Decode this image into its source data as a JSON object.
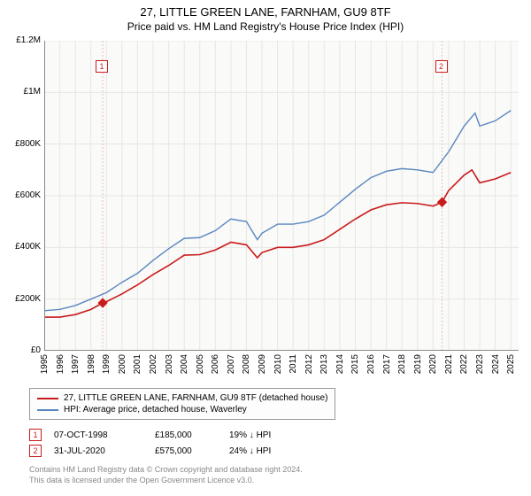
{
  "title": "27, LITTLE GREEN LANE, FARNHAM, GU9 8TF",
  "subtitle": "Price paid vs. HM Land Registry's House Price Index (HPI)",
  "chart": {
    "type": "line",
    "background_color": "#ffffff",
    "plot_bg_color": "#fafaf9",
    "grid_color": "#e6e6e3",
    "axis_color": "#888888",
    "xlim": [
      1995,
      2025.5
    ],
    "ylim": [
      0,
      1200000
    ],
    "ytick_step": 200000,
    "y_ticks": [
      "£0",
      "£200K",
      "£400K",
      "£600K",
      "£800K",
      "£1M",
      "£1.2M"
    ],
    "x_ticks": [
      "1995",
      "1996",
      "1997",
      "1998",
      "1999",
      "2000",
      "2001",
      "2002",
      "2003",
      "2004",
      "2005",
      "2006",
      "2007",
      "2008",
      "2009",
      "2010",
      "2011",
      "2012",
      "2013",
      "2014",
      "2015",
      "2016",
      "2017",
      "2018",
      "2019",
      "2020",
      "2021",
      "2022",
      "2023",
      "2024",
      "2025"
    ],
    "series_red": {
      "label": "27, LITTLE GREEN LANE, FARNHAM, GU9 8TF (detached house)",
      "color": "#c81b1b",
      "line_width": 1.6,
      "data": [
        [
          1995,
          130000
        ],
        [
          1996,
          130000
        ],
        [
          1997,
          140000
        ],
        [
          1998,
          160000
        ],
        [
          1998.76,
          185000
        ],
        [
          1999,
          190000
        ],
        [
          2000,
          220000
        ],
        [
          2001,
          255000
        ],
        [
          2002,
          295000
        ],
        [
          2003,
          330000
        ],
        [
          2004,
          370000
        ],
        [
          2005,
          372000
        ],
        [
          2006,
          390000
        ],
        [
          2007,
          420000
        ],
        [
          2008,
          410000
        ],
        [
          2008.7,
          360000
        ],
        [
          2009,
          380000
        ],
        [
          2010,
          400000
        ],
        [
          2011,
          400000
        ],
        [
          2012,
          410000
        ],
        [
          2013,
          430000
        ],
        [
          2014,
          470000
        ],
        [
          2015,
          510000
        ],
        [
          2016,
          545000
        ],
        [
          2017,
          565000
        ],
        [
          2018,
          573000
        ],
        [
          2019,
          570000
        ],
        [
          2020,
          560000
        ],
        [
          2020.58,
          575000
        ],
        [
          2021,
          620000
        ],
        [
          2022,
          680000
        ],
        [
          2022.5,
          700000
        ],
        [
          2023,
          650000
        ],
        [
          2024,
          665000
        ],
        [
          2025,
          690000
        ]
      ]
    },
    "series_blue": {
      "label": "HPI: Average price, detached house, Waverley",
      "color": "#5a87bf",
      "line_width": 1.4,
      "data": [
        [
          1995,
          155000
        ],
        [
          1996,
          160000
        ],
        [
          1997,
          175000
        ],
        [
          1998,
          200000
        ],
        [
          1999,
          225000
        ],
        [
          2000,
          265000
        ],
        [
          2001,
          300000
        ],
        [
          2002,
          350000
        ],
        [
          2003,
          395000
        ],
        [
          2004,
          435000
        ],
        [
          2005,
          438000
        ],
        [
          2006,
          465000
        ],
        [
          2007,
          510000
        ],
        [
          2008,
          500000
        ],
        [
          2008.7,
          430000
        ],
        [
          2009,
          455000
        ],
        [
          2010,
          490000
        ],
        [
          2011,
          490000
        ],
        [
          2012,
          500000
        ],
        [
          2013,
          525000
        ],
        [
          2014,
          575000
        ],
        [
          2015,
          625000
        ],
        [
          2016,
          670000
        ],
        [
          2017,
          695000
        ],
        [
          2018,
          705000
        ],
        [
          2019,
          700000
        ],
        [
          2020,
          690000
        ],
        [
          2021,
          770000
        ],
        [
          2022,
          870000
        ],
        [
          2022.7,
          920000
        ],
        [
          2023,
          870000
        ],
        [
          2024,
          890000
        ],
        [
          2025,
          930000
        ]
      ]
    },
    "markers": [
      {
        "n": "1",
        "x": 1998.76,
        "y": 185000,
        "color": "#c81b1b",
        "vline_color": "#e6c0c0"
      },
      {
        "n": "2",
        "x": 2020.58,
        "y": 575000,
        "color": "#c81b1b",
        "vline_color": "#e6c0c0"
      }
    ]
  },
  "legend": {
    "items": [
      {
        "label": "27, LITTLE GREEN LANE, FARNHAM, GU9 8TF (detached house)",
        "color": "#c81b1b"
      },
      {
        "label": "HPI: Average price, detached house, Waverley",
        "color": "#5a87bf"
      }
    ]
  },
  "notes": [
    {
      "n": "1",
      "color": "#c81b1b",
      "date": "07-OCT-1998",
      "price": "£185,000",
      "pct": "19% ↓ HPI"
    },
    {
      "n": "2",
      "color": "#c81b1b",
      "date": "31-JUL-2020",
      "price": "£575,000",
      "pct": "24% ↓ HPI"
    }
  ],
  "credits": {
    "line1": "Contains HM Land Registry data © Crown copyright and database right 2024.",
    "line2": "This data is licensed under the Open Government Licence v3.0."
  }
}
